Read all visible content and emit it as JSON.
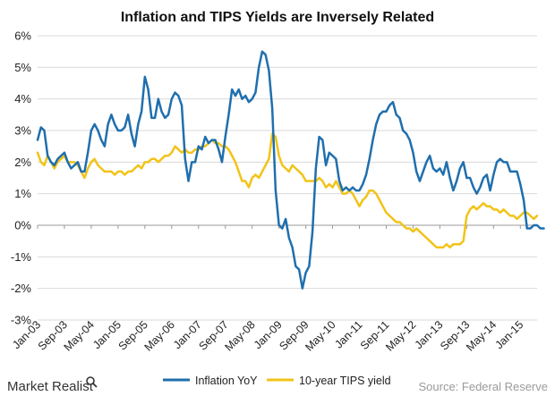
{
  "chart_data": {
    "type": "line",
    "title": "Inflation and TIPS Yields are Inversely Related",
    "xlabel": "",
    "ylabel": "",
    "ylim": [
      -3,
      6
    ],
    "yticks": [
      -3,
      -2,
      -1,
      0,
      1,
      2,
      3,
      4,
      5,
      6
    ],
    "ytick_labels": [
      "-3%",
      "-2%",
      "-1%",
      "0%",
      "1%",
      "2%",
      "3%",
      "4%",
      "5%",
      "6%"
    ],
    "x_start": "Jan-03",
    "x_count": 150,
    "xtick_labels": [
      "Jan-03",
      "Sep-03",
      "May-04",
      "Jan-05",
      "Sep-05",
      "May-06",
      "Jan-07",
      "Sep-07",
      "May-08",
      "Jan-09",
      "Sep-09",
      "May-10",
      "Jan-11",
      "Sep-11",
      "May-12",
      "Jan-13",
      "Sep-13",
      "May-14",
      "Jan-15"
    ],
    "xtick_index": [
      0,
      8,
      16,
      24,
      32,
      40,
      48,
      56,
      64,
      72,
      80,
      88,
      96,
      104,
      112,
      120,
      128,
      136,
      144
    ],
    "grid": true,
    "legend_position": "bottom",
    "series": [
      {
        "name": "Inflation YoY",
        "color": "#1f6fae",
        "values": [
          2.7,
          3.1,
          3.0,
          2.2,
          2.0,
          1.9,
          2.1,
          2.2,
          2.3,
          2.0,
          1.8,
          1.9,
          2.0,
          1.7,
          1.7,
          2.3,
          3.0,
          3.2,
          3.0,
          2.7,
          2.5,
          3.2,
          3.5,
          3.2,
          3.0,
          3.0,
          3.1,
          3.5,
          2.9,
          2.5,
          3.2,
          3.6,
          4.7,
          4.3,
          3.4,
          3.4,
          4.0,
          3.6,
          3.4,
          3.5,
          4.0,
          4.2,
          4.1,
          3.8,
          2.1,
          1.4,
          2.0,
          2.0,
          2.5,
          2.4,
          2.8,
          2.6,
          2.7,
          2.7,
          2.4,
          2.0,
          2.8,
          3.5,
          4.3,
          4.1,
          4.3,
          4.0,
          4.1,
          3.9,
          4.0,
          4.2,
          5.0,
          5.5,
          5.4,
          4.9,
          3.7,
          1.1,
          0.0,
          -0.1,
          0.2,
          -0.4,
          -0.7,
          -1.3,
          -1.4,
          -2.0,
          -1.5,
          -1.3,
          -0.2,
          1.8,
          2.8,
          2.7,
          1.9,
          2.3,
          2.2,
          2.1,
          1.4,
          1.1,
          1.2,
          1.1,
          1.2,
          1.1,
          1.1,
          1.3,
          1.6,
          2.1,
          2.7,
          3.2,
          3.5,
          3.6,
          3.6,
          3.8,
          3.9,
          3.5,
          3.4,
          3.0,
          2.9,
          2.7,
          2.3,
          1.7,
          1.4,
          1.7,
          2.0,
          2.2,
          1.8,
          1.7,
          1.8,
          1.6,
          2.0,
          1.5,
          1.1,
          1.4,
          1.8,
          2.0,
          1.5,
          1.5,
          1.2,
          1.0,
          1.2,
          1.5,
          1.6,
          1.1,
          1.6,
          2.0,
          2.1,
          2.0,
          2.0,
          1.7,
          1.7,
          1.7,
          1.3,
          0.8,
          -0.1,
          -0.1,
          0.0,
          0.0,
          -0.1,
          -0.1
        ]
      },
      {
        "name": "10-year TIPS yield",
        "color": "#f2c318",
        "values": [
          2.3,
          2.0,
          1.9,
          2.2,
          2.0,
          1.8,
          2.0,
          2.1,
          2.2,
          2.0,
          2.0,
          2.0,
          1.9,
          1.7,
          1.5,
          1.8,
          2.0,
          2.1,
          1.9,
          1.8,
          1.7,
          1.7,
          1.7,
          1.6,
          1.7,
          1.7,
          1.6,
          1.7,
          1.7,
          1.8,
          1.9,
          1.8,
          2.0,
          2.0,
          2.1,
          2.1,
          2.0,
          2.1,
          2.2,
          2.2,
          2.3,
          2.5,
          2.4,
          2.3,
          2.4,
          2.3,
          2.3,
          2.4,
          2.4,
          2.5,
          2.5,
          2.6,
          2.7,
          2.6,
          2.6,
          2.5,
          2.5,
          2.4,
          2.2,
          2.0,
          1.7,
          1.4,
          1.4,
          1.2,
          1.5,
          1.6,
          1.5,
          1.7,
          1.9,
          2.1,
          2.9,
          2.8,
          2.2,
          1.9,
          1.8,
          1.7,
          1.9,
          1.8,
          1.7,
          1.6,
          1.4,
          1.4,
          1.4,
          1.4,
          1.5,
          1.4,
          1.2,
          1.3,
          1.2,
          1.4,
          1.2,
          1.0,
          1.0,
          1.1,
          1.0,
          0.8,
          0.6,
          0.8,
          0.9,
          1.1,
          1.1,
          1.0,
          0.8,
          0.6,
          0.4,
          0.3,
          0.2,
          0.1,
          0.1,
          0.0,
          -0.1,
          -0.1,
          -0.2,
          -0.1,
          -0.2,
          -0.3,
          -0.4,
          -0.5,
          -0.6,
          -0.7,
          -0.7,
          -0.7,
          -0.6,
          -0.7,
          -0.6,
          -0.6,
          -0.6,
          -0.5,
          0.3,
          0.5,
          0.6,
          0.5,
          0.6,
          0.7,
          0.6,
          0.6,
          0.5,
          0.5,
          0.4,
          0.5,
          0.4,
          0.3,
          0.3,
          0.2,
          0.3,
          0.4,
          0.4,
          0.3,
          0.2,
          0.3
        ]
      }
    ]
  },
  "footer": {
    "brand": "Market Realist",
    "source": "Source: Federal Reserve"
  }
}
